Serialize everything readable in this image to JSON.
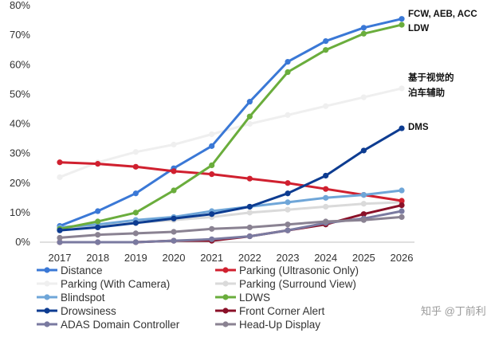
{
  "chart_data": {
    "type": "line",
    "x": [
      2017,
      2018,
      2019,
      2020,
      2021,
      2022,
      2023,
      2024,
      2025,
      2026
    ],
    "y_ticks": [
      "0%",
      "10%",
      "20%",
      "30%",
      "40%",
      "50%",
      "60%",
      "70%",
      "80%"
    ],
    "ylim": [
      0,
      80
    ],
    "grid": false,
    "legend_position": "bottom",
    "series": [
      {
        "name": "Distance",
        "color": "#3a78d6",
        "values": [
          5.5,
          10.5,
          16.5,
          25,
          32.5,
          47.5,
          61,
          68,
          72.5,
          75.5
        ]
      },
      {
        "name": "Parking (Ultrasonic Only)",
        "color": "#d0202f",
        "values": [
          27,
          26.5,
          25.5,
          24,
          23,
          21.5,
          20,
          18,
          16,
          14
        ]
      },
      {
        "name": "Parking (With Camera)",
        "color": "#efefef",
        "values": [
          22,
          27,
          30.5,
          33,
          36.5,
          40,
          43,
          46,
          49,
          52
        ]
      },
      {
        "name": "Parking (Surround View)",
        "color": "#dadada",
        "values": [
          4.5,
          5.5,
          6.5,
          7.5,
          8.5,
          10,
          11,
          12,
          13,
          13.5
        ]
      },
      {
        "name": "Blindspot",
        "color": "#6fa6d8",
        "values": [
          5,
          6,
          7.5,
          8.5,
          10.5,
          12,
          13.5,
          15,
          16,
          17.5
        ]
      },
      {
        "name": "LDWS",
        "color": "#6aad3c",
        "values": [
          4.5,
          7,
          10,
          17.5,
          26,
          42.5,
          57.5,
          65,
          70.5,
          73.5
        ]
      },
      {
        "name": "Drowsiness",
        "color": "#0d3c91",
        "values": [
          4,
          5,
          6.5,
          8,
          9.5,
          12,
          16.5,
          22.5,
          31,
          38.5
        ]
      },
      {
        "name": "Front Corner Alert",
        "color": "#8a1028",
        "values": [
          0,
          0,
          0,
          0.5,
          0.5,
          2,
          4,
          6,
          9.5,
          12.5
        ]
      },
      {
        "name": "ADAS Domain Controller",
        "color": "#7a7aa0",
        "values": [
          0,
          0,
          0,
          0.5,
          1,
          2,
          4,
          6.5,
          8,
          10.5
        ]
      },
      {
        "name": "Head-Up Display",
        "color": "#8a8292",
        "values": [
          1.5,
          2.5,
          3,
          3.5,
          4.5,
          5,
          6,
          7,
          7.5,
          8.5
        ]
      }
    ],
    "annotations": [
      {
        "text": "FCW, AEB, ACC",
        "series": "Distance"
      },
      {
        "text": "LDW",
        "series": "LDWS"
      },
      {
        "text": "基于视觉的",
        "series": "Parking (With Camera)"
      },
      {
        "text": "泊车辅助",
        "series": "Parking (With Camera)"
      },
      {
        "text": "DMS",
        "series": "Drowsiness"
      }
    ]
  },
  "watermark": "知乎 @丁前利"
}
